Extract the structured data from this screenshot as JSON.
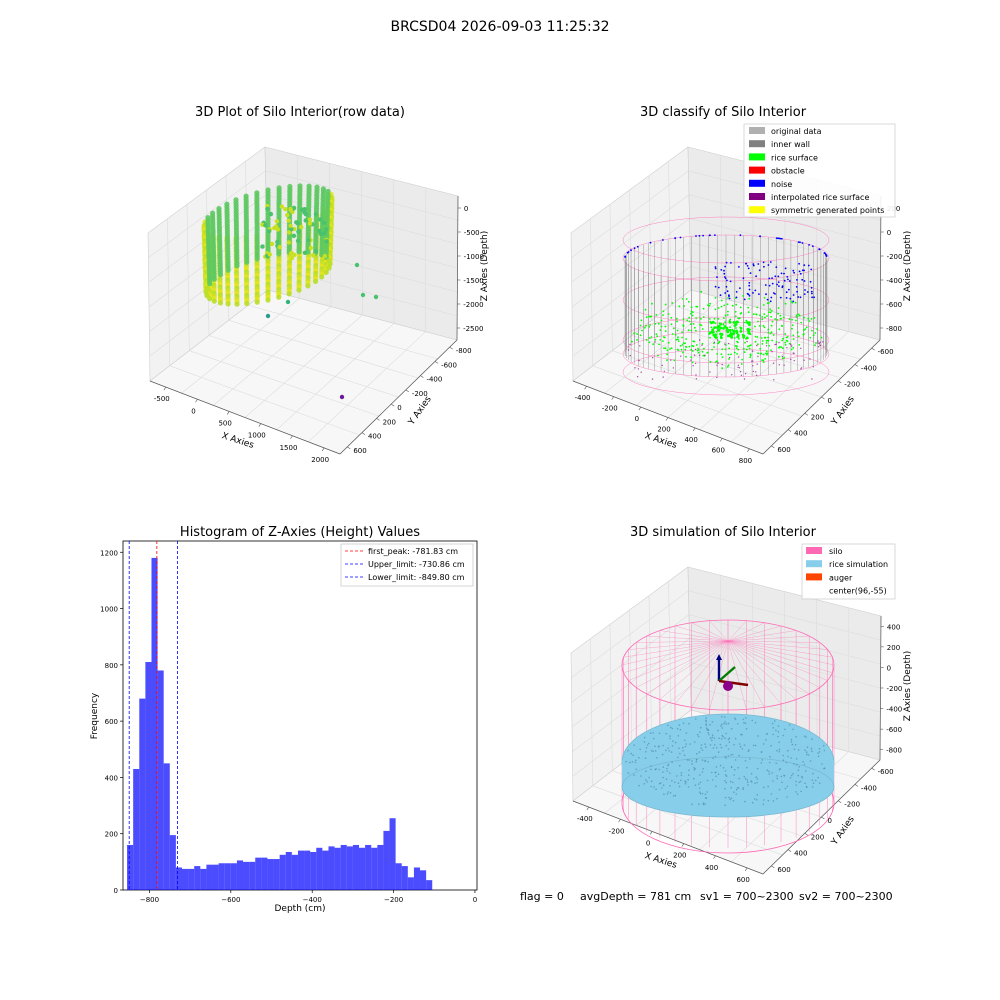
{
  "suptitle": "BRCSD04 2026-09-03 11:25:32",
  "status_line": {
    "flag": "flag = 0",
    "avg_depth": "avgDepth = 781 cm",
    "sv1": "sv1 = 700~2300",
    "sv2": "sv2 = 700~2300"
  },
  "colors": {
    "original_data": "#b0b0b0",
    "inner_wall": "#808080",
    "rice_surface": "#00ff00",
    "obstacle": "#ff0000",
    "noise": "#0000ff",
    "interpolated_rice_surface": "#800080",
    "symmetric_generated_points": "#ffff00",
    "silo": "#ff69b4",
    "rice_simulation": "#87ceeb",
    "auger": "#ff4500",
    "hist_bar": "#0000ff",
    "pane": "#f2f2f2",
    "grid": "#dcdcdc"
  },
  "chart_data": [
    {
      "type": "scatter",
      "title": "3D Plot of Silo Interior(row data)",
      "xlabel": "X Axies",
      "ylabel": "Y Axies",
      "zlabel": "Z Axies (Depth)",
      "xticks": [
        "-500",
        "0",
        "500",
        "1000",
        "1500",
        "2000"
      ],
      "yticks": [
        "-800",
        "-600",
        "-400",
        "-200",
        "0",
        "200",
        "400",
        "600"
      ],
      "zticks": [
        "0",
        "-500",
        "-1000",
        "-1500",
        "-2000",
        "-2500"
      ]
    },
    {
      "type": "scatter",
      "title": "3D classify of Silo Interior",
      "xlabel": "X Axies",
      "ylabel": "Y Axies",
      "zlabel": "Z Axies (Depth)",
      "xticks": [
        "-400",
        "-200",
        "0",
        "200",
        "400",
        "600",
        "800"
      ],
      "yticks": [
        "-600",
        "-400",
        "-200",
        "0",
        "200",
        "400",
        "600"
      ],
      "zticks": [
        "200",
        "0",
        "-200",
        "-400",
        "-600",
        "-800"
      ],
      "legend": [
        "original data",
        "inner wall",
        "rice surface",
        "obstacle",
        "noise",
        "interpolated rice surface",
        "symmetric generated points"
      ],
      "legend_position": "top-right"
    },
    {
      "type": "bar",
      "title": "Histogram of Z-Axies (Height) Values",
      "xlabel": "Depth (cm)",
      "ylabel": "Frequency",
      "xlim": [
        -865,
        5
      ],
      "ylim": [
        0,
        1240
      ],
      "xticks": [
        -800,
        -600,
        -400,
        -200,
        0
      ],
      "yticks": [
        0,
        200,
        400,
        600,
        800,
        1000,
        1200
      ],
      "bin_start": -855,
      "bin_width": 15,
      "values": [
        160,
        430,
        680,
        810,
        1180,
        780,
        450,
        195,
        80,
        75,
        75,
        85,
        75,
        90,
        90,
        95,
        95,
        95,
        105,
        100,
        100,
        115,
        115,
        110,
        110,
        125,
        135,
        125,
        140,
        140,
        135,
        150,
        140,
        155,
        150,
        160,
        155,
        160,
        150,
        160,
        150,
        160,
        210,
        255,
        95,
        85,
        45,
        80,
        70,
        35
      ],
      "vlines": [
        {
          "x": -781.83,
          "color": "#ff0000",
          "label": "first_peak: -781.83 cm"
        },
        {
          "x": -730.86,
          "color": "#0000ff",
          "label": "Upper_limit: -730.86 cm"
        },
        {
          "x": -849.8,
          "color": "#0000ff",
          "label": "Lower_limit: -849.80 cm"
        }
      ],
      "legend_position": "top-right"
    },
    {
      "type": "scatter",
      "title": "3D simulation of Silo Interior",
      "xlabel": "X Axies",
      "ylabel": "Y Axies",
      "zlabel": "Z Axies (Depth)",
      "xticks": [
        "-400",
        "-200",
        "0",
        "200",
        "400",
        "600"
      ],
      "yticks": [
        "-600",
        "-400",
        "-200",
        "0",
        "200",
        "400",
        "600"
      ],
      "zticks": [
        "400",
        "200",
        "0",
        "-200",
        "-400",
        "-600",
        "-800"
      ],
      "legend": [
        "silo",
        "rice simulation",
        "auger",
        "center(96,-55)"
      ],
      "legend_position": "top-right"
    }
  ]
}
